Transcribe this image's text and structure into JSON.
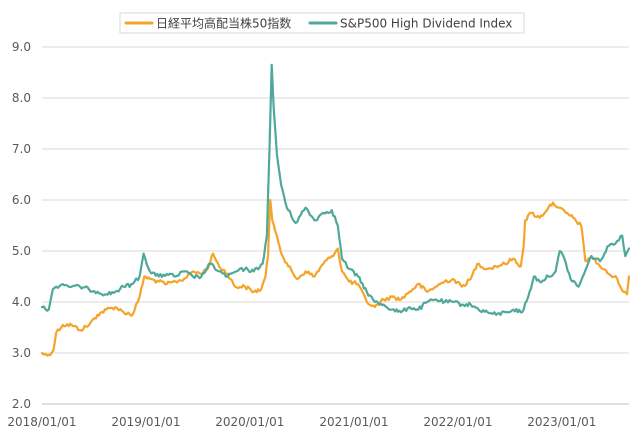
{
  "chart_data": {
    "type": "line",
    "ylim": [
      2.0,
      9.0
    ],
    "xlim": [
      "2018/01/01",
      "2023/08/25"
    ],
    "grid": true,
    "legend_position": "top",
    "y_ticks": [
      "2.0",
      "3.0",
      "4.0",
      "5.0",
      "6.0",
      "7.0",
      "8.0",
      "9.0"
    ],
    "x_ticks": [
      "2018/01/01",
      "2019/01/01",
      "2020/01/01",
      "2021/01/01",
      "2022/01/01",
      "2023/01/01"
    ],
    "series": [
      {
        "name": "日経平均高配当株50指数",
        "color": "#F4A529",
        "points": [
          [
            "2018/01/01",
            3.0
          ],
          [
            "2018/01/20",
            2.95
          ],
          [
            "2018/02/10",
            3.05
          ],
          [
            "2018/02/20",
            3.4
          ],
          [
            "2018/03/15",
            3.55
          ],
          [
            "2018/04/15",
            3.55
          ],
          [
            "2018/05/15",
            3.45
          ],
          [
            "2018/06/15",
            3.55
          ],
          [
            "2018/07/15",
            3.75
          ],
          [
            "2018/08/15",
            3.85
          ],
          [
            "2018/09/15",
            3.9
          ],
          [
            "2018/10/15",
            3.8
          ],
          [
            "2018/11/15",
            3.75
          ],
          [
            "2018/12/10",
            4.1
          ],
          [
            "2018/12/26",
            4.5
          ],
          [
            "2019/01/15",
            4.45
          ],
          [
            "2019/02/15",
            4.4
          ],
          [
            "2019/03/15",
            4.35
          ],
          [
            "2019/04/15",
            4.4
          ],
          [
            "2019/05/15",
            4.45
          ],
          [
            "2019/06/15",
            4.6
          ],
          [
            "2019/07/15",
            4.55
          ],
          [
            "2019/08/10",
            4.7
          ],
          [
            "2019/08/25",
            4.95
          ],
          [
            "2019/09/15",
            4.7
          ],
          [
            "2019/10/15",
            4.55
          ],
          [
            "2019/11/10",
            4.3
          ],
          [
            "2019/12/15",
            4.3
          ],
          [
            "2020/01/15",
            4.2
          ],
          [
            "2020/02/10",
            4.25
          ],
          [
            "2020/02/25",
            4.5
          ],
          [
            "2020/03/05",
            4.9
          ],
          [
            "2020/03/13",
            6.0
          ],
          [
            "2020/03/20",
            5.6
          ],
          [
            "2020/04/05",
            5.3
          ],
          [
            "2020/04/25",
            4.9
          ],
          [
            "2020/05/15",
            4.7
          ],
          [
            "2020/06/15",
            4.45
          ],
          [
            "2020/07/15",
            4.6
          ],
          [
            "2020/08/15",
            4.5
          ],
          [
            "2020/09/15",
            4.75
          ],
          [
            "2020/10/15",
            4.9
          ],
          [
            "2020/11/05",
            5.05
          ],
          [
            "2020/11/20",
            4.6
          ],
          [
            "2020/12/15",
            4.4
          ],
          [
            "2021/01/15",
            4.35
          ],
          [
            "2021/02/15",
            4.0
          ],
          [
            "2021/03/15",
            3.9
          ],
          [
            "2021/04/15",
            4.05
          ],
          [
            "2021/05/15",
            4.1
          ],
          [
            "2021/06/15",
            4.05
          ],
          [
            "2021/07/15",
            4.2
          ],
          [
            "2021/08/15",
            4.35
          ],
          [
            "2021/09/15",
            4.2
          ],
          [
            "2021/10/15",
            4.3
          ],
          [
            "2021/11/15",
            4.4
          ],
          [
            "2021/12/15",
            4.45
          ],
          [
            "2022/01/15",
            4.3
          ],
          [
            "2022/02/15",
            4.45
          ],
          [
            "2022/03/10",
            4.75
          ],
          [
            "2022/04/15",
            4.65
          ],
          [
            "2022/05/15",
            4.7
          ],
          [
            "2022/06/15",
            4.75
          ],
          [
            "2022/07/15",
            4.85
          ],
          [
            "2022/08/10",
            4.7
          ],
          [
            "2022/08/20",
            5.1
          ],
          [
            "2022/08/25",
            5.6
          ],
          [
            "2022/09/15",
            5.75
          ],
          [
            "2022/10/15",
            5.65
          ],
          [
            "2022/11/15",
            5.85
          ],
          [
            "2022/12/01",
            5.95
          ],
          [
            "2022/12/20",
            5.85
          ],
          [
            "2023/01/15",
            5.75
          ],
          [
            "2023/02/10",
            5.65
          ],
          [
            "2023/03/10",
            5.5
          ],
          [
            "2023/03/25",
            4.8
          ],
          [
            "2023/04/15",
            4.9
          ],
          [
            "2023/05/15",
            4.7
          ],
          [
            "2023/06/15",
            4.55
          ],
          [
            "2023/07/15",
            4.45
          ],
          [
            "2023/08/05",
            4.2
          ],
          [
            "2023/08/18",
            4.15
          ],
          [
            "2023/08/25",
            4.5
          ]
        ]
      },
      {
        "name": "S&P500 High Dividend Index",
        "color": "#4FA89A",
        "points": [
          [
            "2018/01/01",
            3.9
          ],
          [
            "2018/01/25",
            3.85
          ],
          [
            "2018/02/08",
            4.25
          ],
          [
            "2018/02/20",
            4.3
          ],
          [
            "2018/03/15",
            4.35
          ],
          [
            "2018/04/15",
            4.3
          ],
          [
            "2018/05/15",
            4.3
          ],
          [
            "2018/06/15",
            4.25
          ],
          [
            "2018/07/15",
            4.2
          ],
          [
            "2018/08/15",
            4.15
          ],
          [
            "2018/09/15",
            4.2
          ],
          [
            "2018/10/15",
            4.3
          ],
          [
            "2018/11/15",
            4.35
          ],
          [
            "2018/12/10",
            4.5
          ],
          [
            "2018/12/24",
            4.95
          ],
          [
            "2019/01/15",
            4.6
          ],
          [
            "2019/02/15",
            4.5
          ],
          [
            "2019/03/15",
            4.55
          ],
          [
            "2019/04/15",
            4.5
          ],
          [
            "2019/05/15",
            4.6
          ],
          [
            "2019/06/15",
            4.5
          ],
          [
            "2019/07/15",
            4.5
          ],
          [
            "2019/08/15",
            4.75
          ],
          [
            "2019/09/15",
            4.6
          ],
          [
            "2019/10/15",
            4.5
          ],
          [
            "2019/11/15",
            4.6
          ],
          [
            "2019/12/15",
            4.65
          ],
          [
            "2020/01/15",
            4.6
          ],
          [
            "2020/02/15",
            4.75
          ],
          [
            "2020/03/01",
            5.3
          ],
          [
            "2020/03/10",
            7.0
          ],
          [
            "2020/03/18",
            8.65
          ],
          [
            "2020/03/25",
            7.8
          ],
          [
            "2020/04/05",
            6.9
          ],
          [
            "2020/04/20",
            6.3
          ],
          [
            "2020/05/10",
            5.85
          ],
          [
            "2020/06/10",
            5.55
          ],
          [
            "2020/07/15",
            5.85
          ],
          [
            "2020/08/15",
            5.6
          ],
          [
            "2020/09/15",
            5.75
          ],
          [
            "2020/10/15",
            5.8
          ],
          [
            "2020/11/05",
            5.5
          ],
          [
            "2020/11/20",
            4.85
          ],
          [
            "2020/12/15",
            4.65
          ],
          [
            "2021/01/15",
            4.5
          ],
          [
            "2021/02/15",
            4.2
          ],
          [
            "2021/03/15",
            4.0
          ],
          [
            "2021/04/15",
            3.95
          ],
          [
            "2021/05/15",
            3.85
          ],
          [
            "2021/06/15",
            3.8
          ],
          [
            "2021/07/15",
            3.9
          ],
          [
            "2021/08/15",
            3.85
          ],
          [
            "2021/09/15",
            4.0
          ],
          [
            "2021/10/15",
            4.05
          ],
          [
            "2021/11/15",
            4.0
          ],
          [
            "2021/12/15",
            4.0
          ],
          [
            "2022/01/15",
            3.95
          ],
          [
            "2022/02/15",
            3.95
          ],
          [
            "2022/03/15",
            3.85
          ],
          [
            "2022/04/15",
            3.8
          ],
          [
            "2022/05/15",
            3.75
          ],
          [
            "2022/06/15",
            3.8
          ],
          [
            "2022/07/15",
            3.85
          ],
          [
            "2022/08/15",
            3.8
          ],
          [
            "2022/09/05",
            4.1
          ],
          [
            "2022/09/25",
            4.5
          ],
          [
            "2022/10/15",
            4.4
          ],
          [
            "2022/11/15",
            4.5
          ],
          [
            "2022/12/10",
            4.6
          ],
          [
            "2022/12/25",
            5.0
          ],
          [
            "2023/01/10",
            4.85
          ],
          [
            "2023/02/01",
            4.45
          ],
          [
            "2023/03/01",
            4.3
          ],
          [
            "2023/03/20",
            4.55
          ],
          [
            "2023/04/15",
            4.9
          ],
          [
            "2023/05/15",
            4.8
          ],
          [
            "2023/06/15",
            5.1
          ],
          [
            "2023/07/15",
            5.2
          ],
          [
            "2023/08/01",
            5.3
          ],
          [
            "2023/08/12",
            4.9
          ],
          [
            "2023/08/25",
            5.05
          ]
        ]
      }
    ]
  }
}
